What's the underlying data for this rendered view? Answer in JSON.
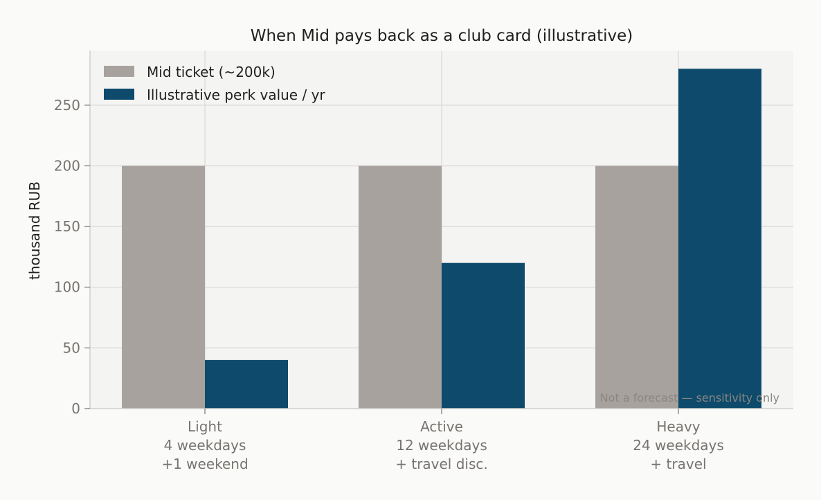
{
  "chart_data": {
    "type": "bar",
    "title": "When Mid pays back as a club card (illustrative)",
    "xlabel": "",
    "ylabel": "thousand RUB",
    "categories": [
      [
        "Light",
        "4 weekdays",
        "+1 weekend"
      ],
      [
        "Active",
        "12 weekdays",
        "+ travel disc."
      ],
      [
        "Heavy",
        "24 weekdays",
        "+ travel"
      ]
    ],
    "series": [
      {
        "name": "Mid ticket (~200k)",
        "values": [
          200,
          200,
          200
        ],
        "color": "#a7a29e"
      },
      {
        "name": "Illustrative perk value / yr",
        "values": [
          40,
          120,
          280
        ],
        "color": "#0d4a6b"
      }
    ],
    "ylim": [
      0,
      295
    ],
    "yticks": [
      0,
      50,
      100,
      150,
      200,
      250
    ],
    "grid": true,
    "legend": "top-left",
    "annotation": "Not a forecast — sensitivity only",
    "colors": {
      "background": "#fafaf8",
      "plot_background": "#f4f4f3",
      "grid": "#d8d8d6",
      "axis": "#cfcfcc"
    }
  }
}
